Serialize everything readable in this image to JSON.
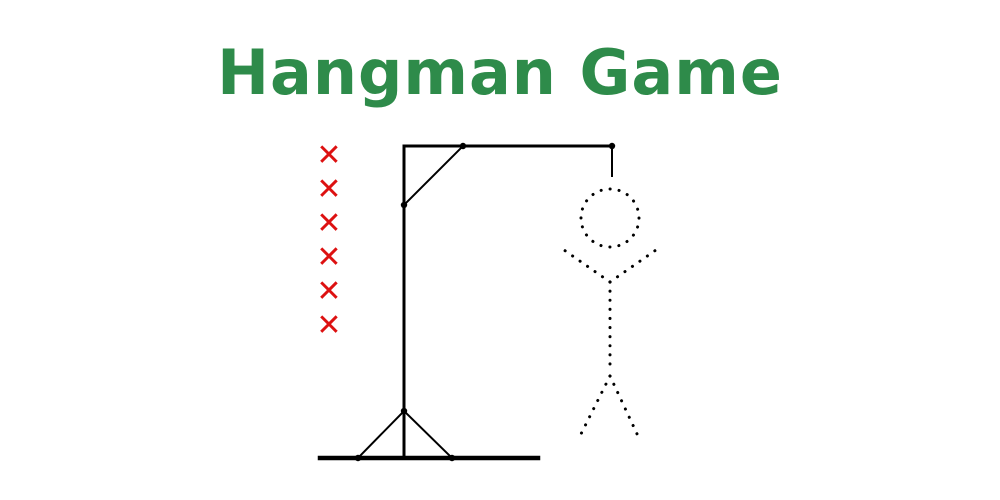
{
  "title": "Hangman Game",
  "colors": {
    "title": "#2E8B4A",
    "miss_marker": "#DD1111",
    "gallows": "#000000",
    "figure": "#000000",
    "background": "#FFFFFF"
  },
  "misses": {
    "marker": "✕",
    "count": 6,
    "items": [
      "✕",
      "✕",
      "✕",
      "✕",
      "✕",
      "✕"
    ]
  },
  "gallows": {
    "icon": "gallows-icon",
    "parts": [
      "ground-base",
      "post",
      "beam",
      "brace",
      "rope",
      "left-strut",
      "right-strut"
    ]
  },
  "figure": {
    "icon": "stick-figure-icon",
    "style": "dotted",
    "parts": [
      "head",
      "body",
      "left-arm",
      "right-arm",
      "left-leg",
      "right-leg"
    ]
  }
}
